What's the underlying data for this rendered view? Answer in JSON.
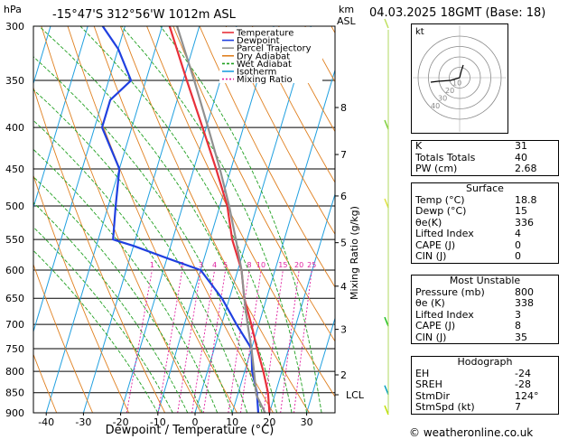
{
  "header": {
    "unit_left": "hPa",
    "location": "-15°47'S  312°56'W  1012m  ASL",
    "unit_right": "km",
    "unit_right_sub": "ASL",
    "datetime": "04.03.2025  18GMT  (Base: 18)"
  },
  "legend": [
    {
      "label": "Temperature",
      "color": "#e8303a"
    },
    {
      "label": "Dewpoint",
      "color": "#2040e0"
    },
    {
      "label": "Parcel Trajectory",
      "color": "#909090"
    },
    {
      "label": "Dry Adiabat",
      "color": "#e08020"
    },
    {
      "label": "Wet Adiabat",
      "color": "#20a020"
    },
    {
      "label": "Isotherm",
      "color": "#20a0e0"
    },
    {
      "label": "Mixing Ratio",
      "color": "#e020a0"
    }
  ],
  "chart_data": {
    "type": "line",
    "xlabel": "Dewpoint / Temperature (°C)",
    "ylabel_right": "Mixing Ratio (g/kg)",
    "x_ticks": [
      -40,
      -30,
      -20,
      -10,
      0,
      10,
      20,
      30
    ],
    "pressure_levels": [
      300,
      350,
      400,
      450,
      500,
      550,
      600,
      650,
      700,
      750,
      800,
      850,
      900
    ],
    "km_ticks": [
      {
        "label": "8",
        "p": 378
      },
      {
        "label": "7",
        "p": 432
      },
      {
        "label": "6",
        "p": 486
      },
      {
        "label": "5",
        "p": 555
      },
      {
        "label": "4",
        "p": 628
      },
      {
        "label": "3",
        "p": 710
      },
      {
        "label": "2",
        "p": 808
      },
      {
        "label": "LCL",
        "p": 855
      }
    ],
    "mixing_ratio_labels": [
      "1",
      "2",
      "3",
      "4",
      "5",
      "8",
      "10",
      "15",
      "20",
      "25"
    ],
    "series": [
      {
        "name": "Temperature",
        "color": "#e8303a",
        "points": [
          [
            900,
            20
          ],
          [
            850,
            18
          ],
          [
            800,
            15
          ],
          [
            750,
            11.5
          ],
          [
            700,
            8
          ],
          [
            650,
            4
          ],
          [
            600,
            1
          ],
          [
            550,
            -4
          ],
          [
            500,
            -8
          ],
          [
            450,
            -14
          ],
          [
            400,
            -21
          ],
          [
            350,
            -29
          ],
          [
            300,
            -38
          ]
        ]
      },
      {
        "name": "Dewpoint",
        "color": "#2040e0",
        "points": [
          [
            900,
            17
          ],
          [
            850,
            15
          ],
          [
            800,
            12
          ],
          [
            750,
            10
          ],
          [
            700,
            4
          ],
          [
            650,
            -2
          ],
          [
            600,
            -10
          ],
          [
            580,
            -20
          ],
          [
            560,
            -30
          ],
          [
            550,
            -36
          ],
          [
            500,
            -38
          ],
          [
            450,
            -40
          ],
          [
            400,
            -48
          ],
          [
            370,
            -48
          ],
          [
            350,
            -44
          ],
          [
            320,
            -50
          ],
          [
            300,
            -56
          ]
        ]
      },
      {
        "name": "Parcel Trajectory",
        "color": "#909090",
        "points": [
          [
            900,
            18.8
          ],
          [
            855,
            15
          ],
          [
            800,
            12.5
          ],
          [
            750,
            10
          ],
          [
            700,
            7
          ],
          [
            650,
            4
          ],
          [
            600,
            1
          ],
          [
            550,
            -3
          ],
          [
            500,
            -7.5
          ],
          [
            450,
            -13
          ],
          [
            400,
            -19.5
          ],
          [
            350,
            -27
          ],
          [
            300,
            -36
          ]
        ]
      }
    ]
  },
  "hodograph": {
    "label": "kt",
    "rings": [
      "10",
      "20",
      "30",
      "40"
    ]
  },
  "indices": {
    "top": [
      {
        "label": "K",
        "value": "31"
      },
      {
        "label": "Totals Totals",
        "value": "40"
      },
      {
        "label": "PW (cm)",
        "value": "2.68"
      }
    ],
    "surface": {
      "title": "Surface",
      "rows": [
        {
          "label": "Temp (°C)",
          "value": "18.8"
        },
        {
          "label": "Dewp (°C)",
          "value": "15"
        },
        {
          "label": "θe(K)",
          "value": "336"
        },
        {
          "label": "Lifted Index",
          "value": "4"
        },
        {
          "label": "CAPE (J)",
          "value": "0"
        },
        {
          "label": "CIN (J)",
          "value": "0"
        }
      ]
    },
    "most_unstable": {
      "title": "Most Unstable",
      "rows": [
        {
          "label": "Pressure (mb)",
          "value": "800"
        },
        {
          "label": "θe (K)",
          "value": "338"
        },
        {
          "label": "Lifted Index",
          "value": "3"
        },
        {
          "label": "CAPE (J)",
          "value": "8"
        },
        {
          "label": "CIN (J)",
          "value": "35"
        }
      ]
    },
    "hodograph": {
      "title": "Hodograph",
      "rows": [
        {
          "label": "EH",
          "value": "-24"
        },
        {
          "label": "SREH",
          "value": "-28"
        },
        {
          "label": "StmDir",
          "value": "124°"
        },
        {
          "label": "StmSpd (kt)",
          "value": "7"
        }
      ]
    }
  },
  "footer": "© weatheronline.co.uk"
}
